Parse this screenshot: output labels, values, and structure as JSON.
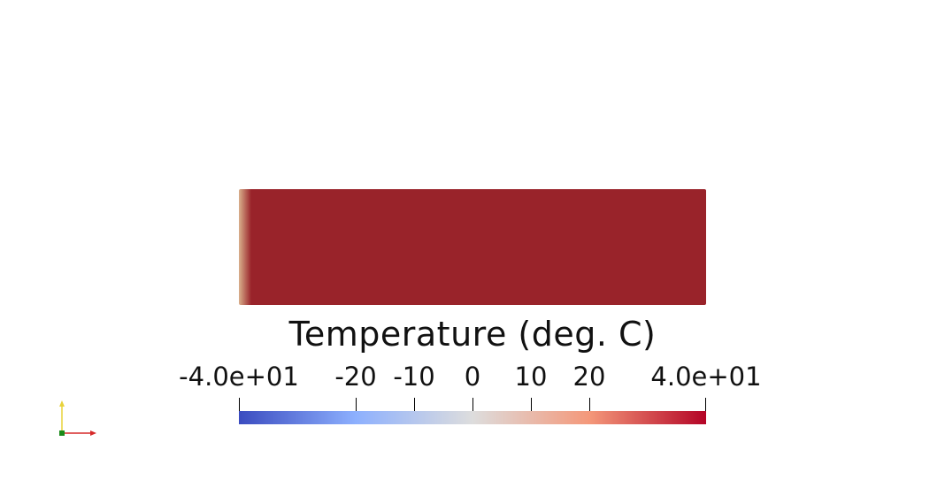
{
  "scene": {
    "slab_color": "#99232a",
    "slab_edge_highlight": "#d9b08c"
  },
  "scalar_bar": {
    "title": "Temperature (deg. C)",
    "range": [
      -40,
      40
    ],
    "ticks": [
      {
        "label": "-4.0e+01",
        "value": -40
      },
      {
        "label": "-20",
        "value": -20
      },
      {
        "label": "-10",
        "value": -10
      },
      {
        "label": "0",
        "value": 0
      },
      {
        "label": "10",
        "value": 10
      },
      {
        "label": "20",
        "value": 20
      },
      {
        "label": "4.0e+01",
        "value": 40
      }
    ],
    "colormap": [
      "#3b4cc0",
      "#8db0fe",
      "#dddddd",
      "#f4987a",
      "#b40426"
    ]
  },
  "orientation_axes": {
    "x_color": "#d62a2a",
    "y_color": "#e8d23a",
    "z_color": "#1a8a1a"
  }
}
